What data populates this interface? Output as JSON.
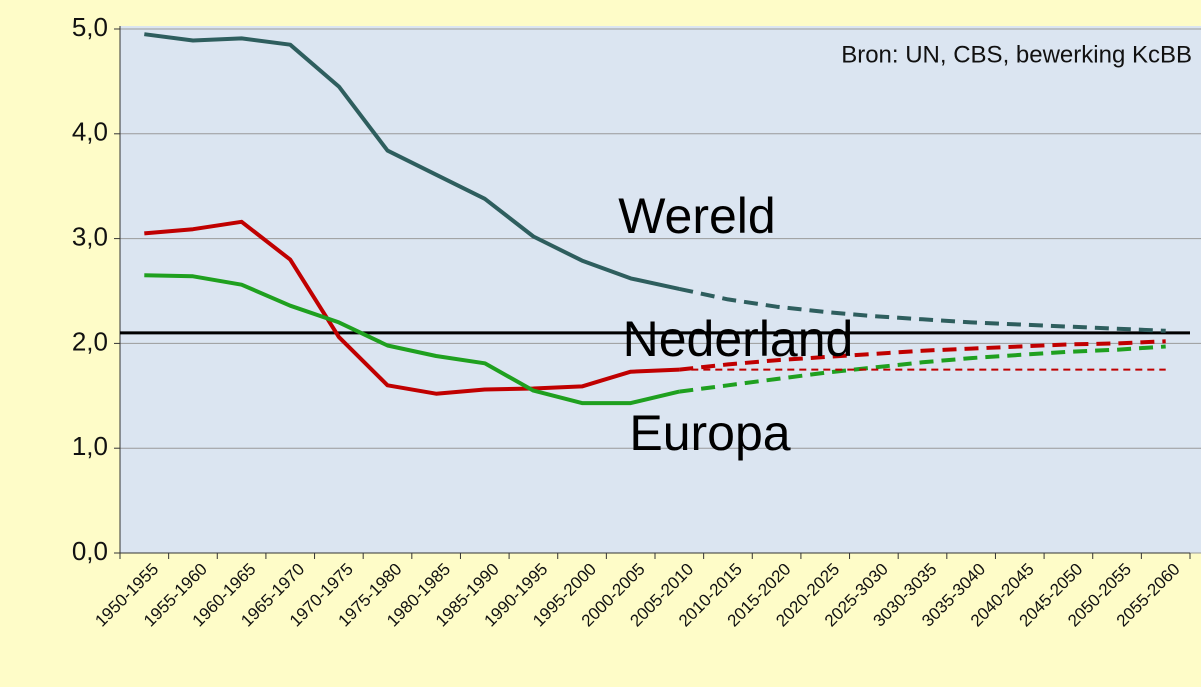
{
  "chart_data": {
    "type": "line",
    "categories": [
      "1950-1955",
      "1955-1960",
      "1960-1965",
      "1965-1970",
      "1970-1975",
      "1975-1980",
      "1980-1985",
      "1985-1990",
      "1990-1995",
      "1995-2000",
      "2000-2005",
      "2005-2010",
      "2010-2015",
      "2015-2020",
      "2020-2025",
      "2025-3030",
      "3030-3035",
      "3035-3040",
      "2040-2045",
      "2045-2050",
      "2050-2055",
      "2055-2060"
    ],
    "dashed_from": "2005-2010",
    "series": [
      {
        "name": "Wereld",
        "color": "#2e5e5e",
        "values": [
          4.95,
          4.89,
          4.91,
          4.85,
          4.45,
          3.84,
          3.61,
          3.38,
          3.02,
          2.79,
          2.62,
          2.52,
          2.42,
          2.35,
          2.3,
          2.26,
          2.23,
          2.2,
          2.18,
          2.16,
          2.14,
          2.12
        ]
      },
      {
        "name": "Nederland",
        "color": "#c00000",
        "values": [
          3.05,
          3.09,
          3.16,
          2.8,
          2.06,
          1.6,
          1.52,
          1.56,
          1.57,
          1.59,
          1.73,
          1.75,
          1.8,
          1.84,
          1.87,
          1.9,
          1.93,
          1.95,
          1.97,
          1.99,
          2.0,
          2.02
        ]
      },
      {
        "name": "Europa",
        "color": "#1fa01f",
        "values": [
          2.65,
          2.64,
          2.56,
          2.36,
          2.2,
          1.98,
          1.88,
          1.81,
          1.55,
          1.43,
          1.43,
          1.54,
          1.6,
          1.66,
          1.72,
          1.77,
          1.82,
          1.86,
          1.89,
          1.92,
          1.94,
          1.97
        ]
      },
      {
        "color": "#c00000",
        "thin": true,
        "values": [
          null,
          null,
          null,
          null,
          null,
          null,
          null,
          null,
          null,
          null,
          null,
          1.75,
          1.75,
          1.75,
          1.75,
          1.75,
          1.75,
          1.75,
          1.75,
          1.75,
          1.75,
          1.75
        ]
      }
    ],
    "reference_line": 2.1,
    "annotations": [
      "Bron: UN, CBS, bewerking KcBB"
    ],
    "ylim": [
      0,
      5
    ],
    "yticks": [
      {
        "value": 0,
        "label": "0,0"
      },
      {
        "value": 1,
        "label": "1,0"
      },
      {
        "value": 2,
        "label": "2,0"
      },
      {
        "value": 3,
        "label": "3,0"
      },
      {
        "value": 4,
        "label": "4,0"
      },
      {
        "value": 5,
        "label": "5,0"
      }
    ],
    "grid": true
  }
}
